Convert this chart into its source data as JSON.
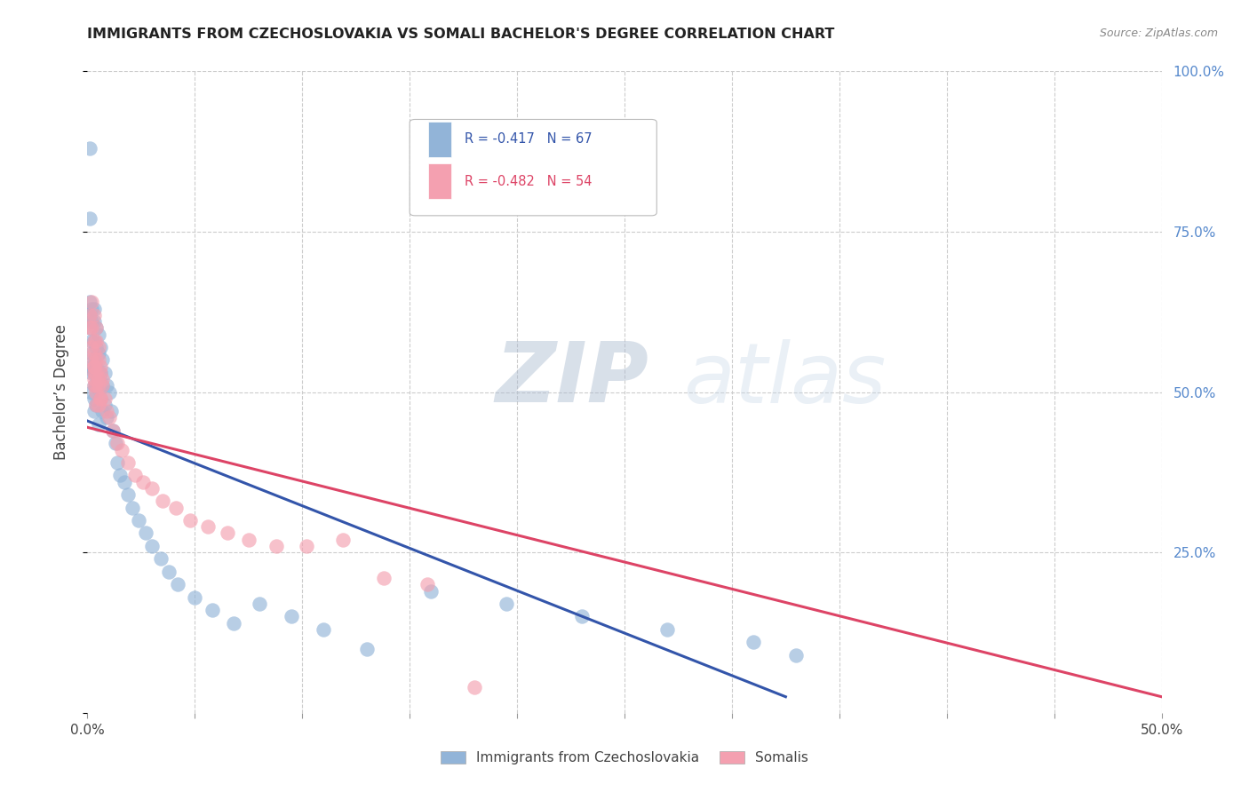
{
  "title": "IMMIGRANTS FROM CZECHOSLOVAKIA VS SOMALI BACHELOR'S DEGREE CORRELATION CHART",
  "source": "Source: ZipAtlas.com",
  "ylabel": "Bachelor’s Degree",
  "legend_blue_r": "-0.417",
  "legend_blue_n": "67",
  "legend_pink_r": "-0.482",
  "legend_pink_n": "54",
  "legend_blue_label": "Immigrants from Czechoslovakia",
  "legend_pink_label": "Somalis",
  "blue_color": "#92B4D8",
  "pink_color": "#F4A0B0",
  "blue_line_color": "#3355AA",
  "pink_line_color": "#DD4466",
  "background_color": "#FFFFFF",
  "grid_color": "#CCCCCC",
  "xlim": [
    0.0,
    0.5
  ],
  "ylim": [
    0.0,
    1.0
  ],
  "blue_scatter_x": [
    0.001,
    0.001,
    0.001,
    0.001,
    0.001,
    0.002,
    0.002,
    0.002,
    0.002,
    0.002,
    0.002,
    0.002,
    0.003,
    0.003,
    0.003,
    0.003,
    0.003,
    0.003,
    0.003,
    0.003,
    0.004,
    0.004,
    0.004,
    0.004,
    0.004,
    0.005,
    0.005,
    0.005,
    0.005,
    0.006,
    0.006,
    0.006,
    0.007,
    0.007,
    0.007,
    0.008,
    0.008,
    0.009,
    0.009,
    0.01,
    0.011,
    0.012,
    0.013,
    0.014,
    0.015,
    0.017,
    0.019,
    0.021,
    0.024,
    0.027,
    0.03,
    0.034,
    0.038,
    0.042,
    0.05,
    0.058,
    0.068,
    0.08,
    0.095,
    0.11,
    0.13,
    0.16,
    0.195,
    0.23,
    0.27,
    0.31,
    0.33
  ],
  "blue_scatter_y": [
    0.88,
    0.77,
    0.64,
    0.62,
    0.6,
    0.63,
    0.61,
    0.58,
    0.56,
    0.54,
    0.53,
    0.5,
    0.63,
    0.61,
    0.58,
    0.55,
    0.53,
    0.51,
    0.49,
    0.47,
    0.6,
    0.57,
    0.54,
    0.51,
    0.48,
    0.59,
    0.56,
    0.53,
    0.45,
    0.57,
    0.53,
    0.49,
    0.55,
    0.51,
    0.47,
    0.53,
    0.48,
    0.51,
    0.46,
    0.5,
    0.47,
    0.44,
    0.42,
    0.39,
    0.37,
    0.36,
    0.34,
    0.32,
    0.3,
    0.28,
    0.26,
    0.24,
    0.22,
    0.2,
    0.18,
    0.16,
    0.14,
    0.17,
    0.15,
    0.13,
    0.1,
    0.19,
    0.17,
    0.15,
    0.13,
    0.11,
    0.09
  ],
  "pink_scatter_x": [
    0.001,
    0.001,
    0.002,
    0.002,
    0.002,
    0.003,
    0.003,
    0.003,
    0.003,
    0.004,
    0.004,
    0.004,
    0.005,
    0.005,
    0.006,
    0.006,
    0.007,
    0.008,
    0.009,
    0.01,
    0.012,
    0.014,
    0.016,
    0.019,
    0.022,
    0.026,
    0.03,
    0.035,
    0.041,
    0.048,
    0.056,
    0.065,
    0.075,
    0.088,
    0.102,
    0.119,
    0.138,
    0.158,
    0.18,
    0.003,
    0.003,
    0.004,
    0.004,
    0.005,
    0.005,
    0.006,
    0.006,
    0.007,
    0.002,
    0.003,
    0.004,
    0.005,
    0.003,
    0.004
  ],
  "pink_scatter_y": [
    0.62,
    0.6,
    0.64,
    0.6,
    0.55,
    0.62,
    0.58,
    0.54,
    0.51,
    0.6,
    0.55,
    0.5,
    0.57,
    0.52,
    0.54,
    0.49,
    0.52,
    0.49,
    0.47,
    0.46,
    0.44,
    0.42,
    0.41,
    0.39,
    0.37,
    0.36,
    0.35,
    0.33,
    0.32,
    0.3,
    0.29,
    0.28,
    0.27,
    0.26,
    0.26,
    0.27,
    0.21,
    0.2,
    0.04,
    0.56,
    0.53,
    0.58,
    0.53,
    0.55,
    0.51,
    0.53,
    0.49,
    0.51,
    0.57,
    0.54,
    0.51,
    0.48,
    0.52,
    0.48
  ],
  "blue_line_x": [
    0.0,
    0.325
  ],
  "blue_line_y": [
    0.455,
    0.025
  ],
  "pink_line_x": [
    0.0,
    0.5
  ],
  "pink_line_y": [
    0.445,
    0.025
  ],
  "zip_color": "#AABBD0",
  "atlas_color": "#C8D8E8"
}
